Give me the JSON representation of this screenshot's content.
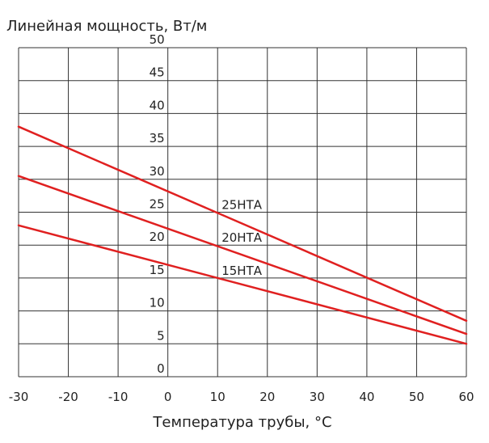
{
  "chart_data": {
    "type": "line",
    "title": "Линейная мощность, Вт/м",
    "xlabel": "Температура трубы, °C",
    "ylabel": "",
    "xlim": [
      -30,
      60
    ],
    "ylim": [
      0,
      50
    ],
    "x_ticks": [
      "-30",
      "-20",
      "-10",
      "0",
      "10",
      "20",
      "30",
      "40",
      "50",
      "60"
    ],
    "y_ticks": [
      "0",
      "5",
      "10",
      "15",
      "20",
      "25",
      "30",
      "35",
      "40",
      "45",
      "50"
    ],
    "grid": true,
    "series_color": "#e02020",
    "series": [
      {
        "name": "25НТА",
        "x": [
          -30,
          60
        ],
        "y": [
          38.0,
          8.5
        ],
        "label_at": [
          10,
          25.5
        ]
      },
      {
        "name": "20НТА",
        "x": [
          -30,
          60
        ],
        "y": [
          30.5,
          6.5
        ],
        "label_at": [
          10,
          20.5
        ]
      },
      {
        "name": "15НТА",
        "x": [
          -30,
          60
        ],
        "y": [
          23.0,
          5.0
        ],
        "label_at": [
          10,
          15.5
        ]
      }
    ]
  }
}
